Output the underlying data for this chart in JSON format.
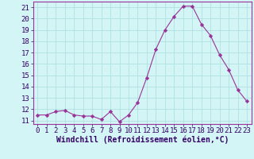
{
  "x": [
    0,
    1,
    2,
    3,
    4,
    5,
    6,
    7,
    8,
    9,
    10,
    11,
    12,
    13,
    14,
    15,
    16,
    17,
    18,
    19,
    20,
    21,
    22,
    23
  ],
  "y": [
    11.5,
    11.5,
    11.8,
    11.9,
    11.5,
    11.4,
    11.4,
    11.1,
    11.8,
    10.9,
    11.5,
    12.6,
    14.8,
    17.3,
    19.0,
    20.2,
    21.1,
    21.1,
    19.5,
    18.5,
    16.8,
    15.5,
    13.7,
    12.7
  ],
  "line_color": "#993399",
  "marker": "D",
  "marker_size": 2.2,
  "bg_color": "#d4f5f5",
  "grid_color": "#aadddd",
  "xlabel": "Windchill (Refroidissement éolien,°C)",
  "xlabel_fontsize": 7,
  "ylabel_ticks": [
    11,
    12,
    13,
    14,
    15,
    16,
    17,
    18,
    19,
    20,
    21
  ],
  "xlim": [
    -0.5,
    23.5
  ],
  "ylim": [
    10.7,
    21.5
  ],
  "tick_fontsize": 6.5,
  "axis_label_color": "#330066",
  "tick_color": "#330066"
}
